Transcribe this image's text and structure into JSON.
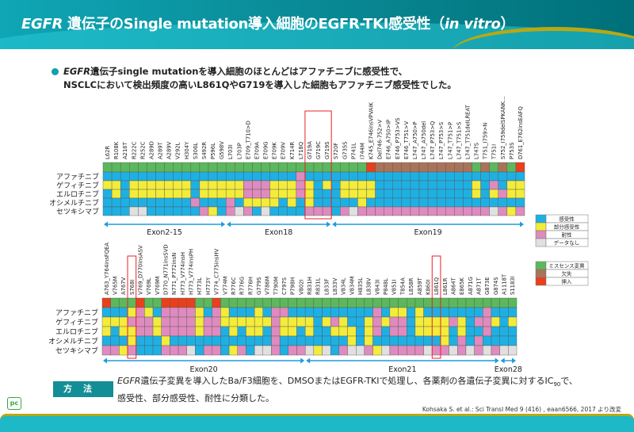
{
  "header": {
    "title_italic": "EGFR",
    "title_main": " 遺伝子のSingle mutation導入細胞のEGFR-TKI感受性（",
    "title_italic2": "in vitro",
    "title_end": "）"
  },
  "summary": {
    "line1_italic": "EGFR",
    "line1": "遺伝子single mutationを導入細胞のほとんどはアファチニブに感受性で、",
    "line2": "NSCLCにおいて検出頻度の高いL861QやG719を導入した細胞もアファチニブ感受性でした。"
  },
  "method": {
    "label": "方法",
    "italic": "EGFR",
    "line1": "遺伝子変異を導入したBa/F3細胞を、DMSOまたはEGFR-TKIで処理し、各薬剤の各遺伝子変異に対するIC",
    "subscript": "90",
    "line1_end": "で、",
    "line2": "感受性、部分感受性、耐性に分類した。"
  },
  "citation": "Kohsaka S. et al.: Sci Transl Med 9 (416) , eaan6566, 2017 より改変",
  "logo": "pc",
  "chart_data": {
    "type": "heatmap",
    "drugs": [
      "アファチニブ",
      "ゲフィチニブ",
      "エルロチニブ",
      "オシメルチニブ",
      "セツキシマブ"
    ],
    "sensitivity_legend": [
      {
        "code": "S",
        "label": "感受性",
        "color": "#1fb0e3"
      },
      {
        "code": "P",
        "label": "部分感受性",
        "color": "#f3ec3a"
      },
      {
        "code": "R",
        "label": "耐性",
        "color": "#df8bbf"
      },
      {
        "code": "N",
        "label": "データなし",
        "color": "#e0e0e0"
      }
    ],
    "type_legend": [
      {
        "code": "M",
        "label": "ミスセンス変異",
        "color": "#5cb85c"
      },
      {
        "code": "D",
        "label": "欠失",
        "color": "#a9735a"
      },
      {
        "code": "I",
        "label": "挿入",
        "color": "#e8401c"
      }
    ],
    "highlight_color": "#e8202a",
    "panels": [
      {
        "mutations": [
          "L62R",
          "R108K",
          "A216T",
          "R222C",
          "R252C",
          "A289D",
          "A289T",
          "A289V",
          "V292L",
          "H304Y",
          "S306L",
          "S492R",
          "P596L",
          "G598V",
          "L703I",
          "L703P",
          "E709_T710>D",
          "E709A",
          "E709G",
          "E709K",
          "E709V",
          "K714R",
          "L718Q",
          "G719A",
          "G719C",
          "G719S",
          "S720F",
          "G735S",
          "P741L",
          "I744M",
          "K745_E746insVPVAIK",
          "Del746-752>V",
          "E746_A750>IP",
          "E746_P753>VS",
          "E746_T751>V",
          "L747_A750>P",
          "L747_A750del",
          "L747_P753>Q",
          "L747_P753>S",
          "L747_T751>P",
          "L747_T751>S",
          "L747_T751delLREAT",
          "L747S",
          "T751_I759>N",
          "T751I",
          "S752_I759delSPKANK…",
          "P753S",
          "D761_E762insEAFQ"
        ],
        "mutation_type": "MMMMMMMMMMMMMMMMMMMMMMMMMMMMMMIDDDDDDDDDDDMDMDMI",
        "values": [
          "SSSSSSSSSSSSSSSSSSSSSSRSSSSSSSSSSSSSSSSSSSSSSSSS",
          "PPSPPPPPPPSPPPPPRRRPPPRPSPSPPPPSSSSSSSSSSSPSRSPP",
          "SPSPPPPPPPSPPPPPRRRPPPRPSSSPPPPSSSSSSSSSSSPSPRPP",
          "SSSSSSSSSSRSSSRSPPPPSPSPSSSSSPSSSSSSSSSSSSSSSSSS",
          "SSSNNSSSSSSRPSRNRSNSSSSRRRSRNRRRRRRRRRRRRRRRNRPR"
        ],
        "exons": [
          {
            "label": "Exon2-15",
            "first": "L62R",
            "last": "G598V"
          },
          {
            "label": "Exon18",
            "first": "L703I",
            "last": "G719S"
          },
          {
            "label": "Exon19",
            "first": "S720F",
            "last": "D761_E762insEAFQ"
          }
        ],
        "highlighted": [
          [
            "G719A",
            "G719S"
          ]
        ]
      },
      {
        "mutations": [
          "A763_Y764insFQEA",
          "V765M",
          "A767V",
          "S768I",
          "V769_D770insASV",
          "V769L",
          "V769M",
          "D770_N771insSVD",
          "N771_P772insN",
          "H773_V774insH",
          "H773_V774insPH",
          "H773L",
          "H773Y",
          "V774_C775insHV",
          "V774M",
          "R776C",
          "R776G",
          "R776H",
          "G779S",
          "V786M",
          "T790M",
          "C797S",
          "P798H",
          "V802I",
          "R831H",
          "R831L",
          "L833F",
          "L833V",
          "V834L",
          "V834M",
          "H835L",
          "L838V",
          "V843I",
          "P848L",
          "V851I",
          "T854A",
          "L858R",
          "A859T",
          "K860I",
          "L861Q",
          "L861R",
          "A864T",
          "E865K",
          "A871G",
          "A871T",
          "G873E",
          "G874S",
          "A1118T",
          "S1183I"
        ],
        "mutation_type": "IMMMIMMIIIIMMIMMMMMMMMMMMMMMMMMMMMMMMMMMMMMMMMMMM",
        "values": [
          "SSSPRPSRRRRPSRPSSSPSRRSSSSSSSSSSRSPPSPSSSSSSSRSSS",
          "PPPRRRPRRRRPRRPPPPPPRPPPPSPRPSSPRPRRSPPPPRPSRRPSP",
          "PSPPRRPRRRRPRRSPSPPSRPPSPSSPPPSPRSRRSPPPPSPSSRSSS",
          "SSSPSSSPSSSSSSSSSSSSRSSSSSSSSPSPSSSSSSSSPSRSRSSSS",
          "RRPRSSSRRRNSRRSPRSNNRSRRNPNSRNNRPNRRRRNRRNRNRNRNN"
        ],
        "exons": [
          {
            "label": "Exon20",
            "first": "A763_Y764insFQEA",
            "last": "V802I"
          },
          {
            "label": "Exon21",
            "first": "R831H",
            "last": "G874S"
          },
          {
            "label": "Exon28",
            "first": "A1118T",
            "last": "S1183I"
          }
        ],
        "highlighted": [
          [
            "S768I",
            "S768I"
          ],
          [
            "L861Q",
            "L861Q"
          ]
        ]
      }
    ]
  }
}
